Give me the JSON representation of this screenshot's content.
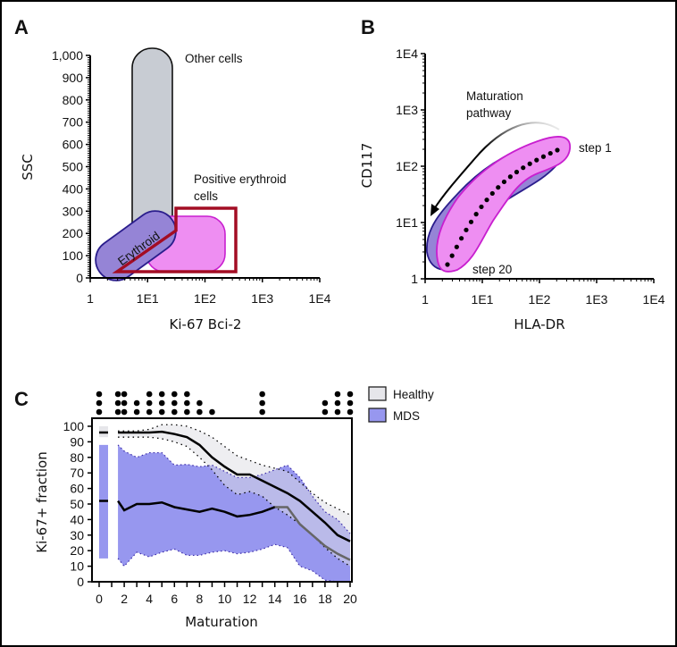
{
  "panels": {
    "a": {
      "letter": "A",
      "ylabel": "SSC",
      "xlabel": "Ki-67 Bci-2",
      "yticks": [
        "0",
        "100",
        "200",
        "300",
        "400",
        "500",
        "600",
        "700",
        "800",
        "900",
        "1,000"
      ],
      "xticks": [
        "1",
        "1E1",
        "1E2",
        "1E3",
        "1E4"
      ],
      "labels": {
        "other": "Other cells",
        "positive_line1": "Positive erythroid",
        "positive_line2": "cells",
        "erythroid": "Erythroid"
      },
      "colors": {
        "other": "#c8ccd3",
        "erythroid": "#9584d6",
        "positive": "#ee8ef2",
        "gate": "#a30d24"
      }
    },
    "b": {
      "letter": "B",
      "ylabel": "CD117",
      "xlabel": "HLA-DR",
      "yticks": [
        "1",
        "1E1",
        "1E2",
        "1E3",
        "1E4"
      ],
      "xticks": [
        "1",
        "1E1",
        "1E2",
        "1E3",
        "1E4"
      ],
      "labels": {
        "pathway_line1": "Maturation",
        "pathway_line2": "pathway",
        "step_first": "step 1",
        "step_last": "step 20"
      },
      "colors": {
        "population": "#9584d6",
        "pathway": "#ee8ef2"
      }
    }
  },
  "chart_data": {
    "type": "line",
    "panel_letter": "C",
    "xlabel": "Maturation",
    "ylabel": "Ki-67+ fraction",
    "xlim": [
      0,
      20
    ],
    "ylim": [
      0,
      100
    ],
    "xticks": [
      "0",
      "2",
      "4",
      "6",
      "8",
      "10",
      "12",
      "14",
      "16",
      "18",
      "20"
    ],
    "yticks": [
      "0",
      "10",
      "20",
      "30",
      "40",
      "50",
      "60",
      "70",
      "80",
      "90",
      "100"
    ],
    "legend": {
      "placement": "right",
      "entries": [
        {
          "name": "Healthy",
          "color": "#e6e6ea"
        },
        {
          "name": "MDS",
          "color": "#9797ef"
        }
      ]
    },
    "baseline_column": {
      "x": 0,
      "healthy": {
        "median": 96,
        "lower": 93,
        "upper": 100
      },
      "mds": {
        "median": 52,
        "lower": 15,
        "upper": 88
      }
    },
    "x": [
      1.5,
      2,
      3,
      4,
      5,
      6,
      7,
      8,
      9,
      10,
      11,
      12,
      13,
      14,
      15,
      16,
      17,
      18,
      19,
      20
    ],
    "series": [
      {
        "name": "Healthy",
        "median": [
          96,
          96,
          96,
          96,
          96.5,
          95,
          93,
          88,
          80,
          74,
          69,
          69,
          65,
          61,
          57,
          52,
          45,
          38,
          30,
          26
        ],
        "upper": [
          97,
          97,
          97,
          98,
          101,
          101,
          100,
          97,
          93,
          87,
          81,
          78,
          75,
          73,
          71,
          64,
          57,
          51,
          47,
          43
        ],
        "lower": [
          93,
          93,
          93,
          93,
          92,
          90,
          87,
          80,
          72,
          62,
          56,
          58,
          55,
          48,
          43,
          37,
          30,
          22,
          15,
          10
        ]
      },
      {
        "name": "MDS",
        "median": [
          52,
          46,
          50,
          50,
          51,
          48,
          46.5,
          45,
          47,
          45,
          42,
          43,
          45,
          48,
          48,
          37,
          30,
          23,
          18,
          14
        ],
        "upper": [
          88,
          84,
          80,
          83,
          83,
          75,
          75.5,
          74,
          75,
          71,
          67,
          67,
          69,
          72,
          75,
          67,
          55,
          45,
          40,
          31
        ],
        "lower": [
          15,
          10,
          19,
          16,
          19,
          21,
          17,
          17,
          19,
          20,
          18,
          19,
          21,
          24,
          22,
          10,
          7,
          1,
          0,
          0
        ]
      }
    ],
    "significance_dots": [
      {
        "x": 0,
        "count": 3
      },
      {
        "x": 1.5,
        "count": 3
      },
      {
        "x": 2,
        "count": 3
      },
      {
        "x": 3,
        "count": 2
      },
      {
        "x": 4,
        "count": 3
      },
      {
        "x": 5,
        "count": 3
      },
      {
        "x": 6,
        "count": 3
      },
      {
        "x": 7,
        "count": 3
      },
      {
        "x": 8,
        "count": 2
      },
      {
        "x": 9,
        "count": 1
      },
      {
        "x": 13,
        "count": 3
      },
      {
        "x": 18,
        "count": 2
      },
      {
        "x": 19,
        "count": 3
      },
      {
        "x": 20,
        "count": 3
      }
    ]
  }
}
